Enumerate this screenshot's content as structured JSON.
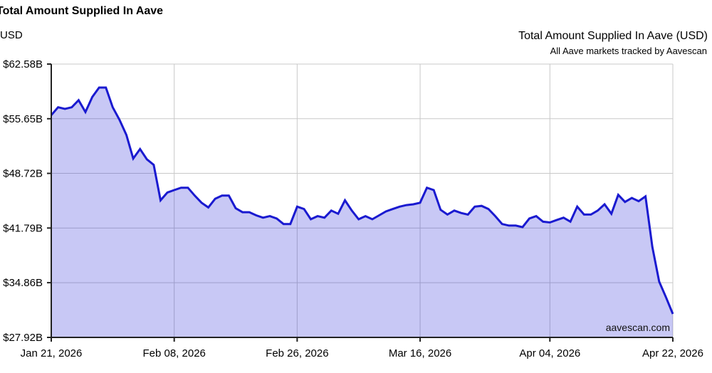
{
  "header": {
    "title": "Total Amount Supplied In Aave",
    "unit_label": "USD",
    "right_title": "Total Amount Supplied In Aave (USD)",
    "right_subtitle": "All Aave markets tracked by Aavescan"
  },
  "watermark": {
    "text": "aavescan.com"
  },
  "colors": {
    "line": "#1a1ad0",
    "fill": "rgba(26,26,215,0.24)",
    "grid": "#c8c8c8",
    "axis": "#222222",
    "text": "#000000"
  },
  "chart_data": {
    "type": "area",
    "title": "Total Amount Supplied In Aave (USD)",
    "subtitle": "All Aave markets tracked by Aavescan",
    "ylabel": "USD",
    "values_unit": "USD billions",
    "x_unit": "day",
    "x_start": "Jan 21, 2026",
    "x_end": "Apr 22, 2026",
    "ylim": [
      27.92,
      62.58
    ],
    "grid": true,
    "legend": "none",
    "yticks": [
      {
        "value": 62.58,
        "label": "$62.58B"
      },
      {
        "value": 55.65,
        "label": "$55.65B"
      },
      {
        "value": 48.72,
        "label": "$48.72B"
      },
      {
        "value": 41.79,
        "label": "$41.79B"
      },
      {
        "value": 34.86,
        "label": "$34.86B"
      },
      {
        "value": 27.92,
        "label": "$27.92B"
      }
    ],
    "xticks": [
      {
        "index": 0,
        "label": "Jan 21, 2026"
      },
      {
        "index": 18,
        "label": "Feb 08, 2026"
      },
      {
        "index": 36,
        "label": "Feb 26, 2026"
      },
      {
        "index": 54,
        "label": "Mar 16, 2026"
      },
      {
        "index": 73,
        "label": "Apr 04, 2026"
      },
      {
        "index": 91,
        "label": "Apr 22, 2026"
      }
    ],
    "values": [
      56.1,
      57.1,
      56.9,
      57.1,
      58.0,
      56.5,
      58.4,
      59.6,
      59.6,
      57.1,
      55.5,
      53.6,
      50.6,
      51.8,
      50.5,
      49.8,
      45.3,
      46.3,
      46.6,
      46.9,
      46.9,
      45.9,
      45.0,
      44.4,
      45.5,
      45.9,
      45.9,
      44.3,
      43.8,
      43.8,
      43.4,
      43.1,
      43.3,
      43.0,
      42.3,
      42.3,
      44.5,
      44.2,
      42.9,
      43.3,
      43.1,
      44.0,
      43.6,
      45.3,
      44.0,
      42.9,
      43.3,
      42.9,
      43.4,
      43.9,
      44.2,
      44.5,
      44.7,
      44.8,
      45.0,
      46.9,
      46.6,
      44.1,
      43.5,
      44.0,
      43.7,
      43.5,
      44.5,
      44.6,
      44.2,
      43.3,
      42.3,
      42.1,
      42.1,
      41.9,
      43.0,
      43.3,
      42.6,
      42.5,
      42.8,
      43.1,
      42.6,
      44.5,
      43.5,
      43.5,
      44.0,
      44.8,
      43.6,
      46.0,
      45.1,
      45.6,
      45.2,
      45.8,
      39.4,
      35.0,
      33.0,
      30.9
    ]
  }
}
